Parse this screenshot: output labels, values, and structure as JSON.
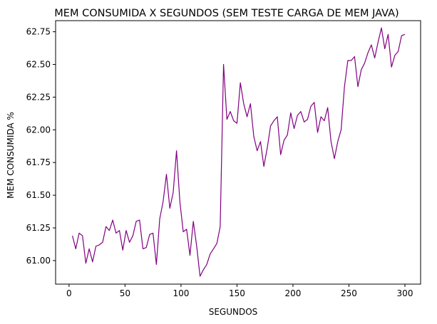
{
  "chart_data": {
    "type": "line",
    "title": "MEM CONSUMIDA X SEGUNDOS (SEM TESTE CARGA DE MEM JAVA)",
    "xlabel": "SEGUNDOS",
    "ylabel": "MEM CONSUMIDA %",
    "xlim": [
      -12,
      314
    ],
    "ylim": [
      60.82,
      62.835
    ],
    "xticks": [
      0,
      50,
      100,
      150,
      200,
      250,
      300
    ],
    "yticks": [
      61.0,
      61.25,
      61.5,
      61.75,
      62.0,
      62.25,
      62.5,
      62.75
    ],
    "ytick_labels": [
      "61.00",
      "61.25",
      "61.50",
      "61.75",
      "62.00",
      "62.25",
      "62.50",
      "62.75"
    ],
    "grid": false,
    "line_color": "#800080",
    "series": [
      {
        "x": [
          3,
          6,
          9,
          12,
          15,
          18,
          21,
          24,
          27,
          30,
          33,
          36,
          39,
          42,
          45,
          48,
          51,
          54,
          57,
          60,
          63,
          66,
          69,
          72,
          75,
          78,
          81,
          84,
          87,
          90,
          93,
          96,
          99,
          102,
          105,
          108,
          111,
          114,
          117,
          120,
          123,
          126,
          129,
          132,
          135,
          138,
          141,
          144,
          147,
          150,
          153,
          156,
          159,
          162,
          165,
          168,
          171,
          174,
          177,
          180,
          183,
          186,
          189,
          192,
          195,
          198,
          201,
          204,
          207,
          210,
          213,
          216,
          219,
          222,
          225,
          228,
          231,
          234,
          237,
          240,
          243,
          246,
          249,
          252,
          255,
          258,
          261,
          264,
          267,
          270,
          273,
          276,
          279,
          282,
          285,
          288,
          291,
          294,
          297,
          300
        ],
        "y": [
          61.19,
          61.09,
          61.21,
          61.19,
          60.98,
          61.09,
          60.99,
          61.11,
          61.12,
          61.14,
          61.26,
          61.23,
          61.31,
          61.21,
          61.23,
          61.08,
          61.23,
          61.14,
          61.19,
          61.3,
          61.31,
          61.09,
          61.1,
          61.2,
          61.21,
          60.97,
          61.32,
          61.45,
          61.66,
          61.4,
          61.52,
          61.84,
          61.45,
          61.22,
          61.24,
          61.04,
          61.3,
          61.11,
          60.88,
          60.93,
          60.97,
          61.05,
          61.09,
          61.13,
          61.26,
          62.5,
          62.08,
          62.14,
          62.07,
          62.05,
          62.36,
          62.2,
          62.1,
          62.2,
          61.95,
          61.84,
          61.91,
          61.72,
          61.86,
          62.03,
          62.07,
          62.1,
          61.81,
          61.92,
          61.96,
          62.13,
          62.01,
          62.11,
          62.14,
          62.06,
          62.08,
          62.18,
          62.21,
          61.98,
          62.1,
          62.07,
          62.17,
          61.91,
          61.78,
          61.91,
          62.0,
          62.33,
          62.53,
          62.53,
          62.56,
          62.33,
          62.46,
          62.51,
          62.59,
          62.65,
          62.55,
          62.67,
          62.78,
          62.62,
          62.73,
          62.48,
          62.57,
          62.6,
          62.72,
          62.73
        ]
      }
    ]
  }
}
